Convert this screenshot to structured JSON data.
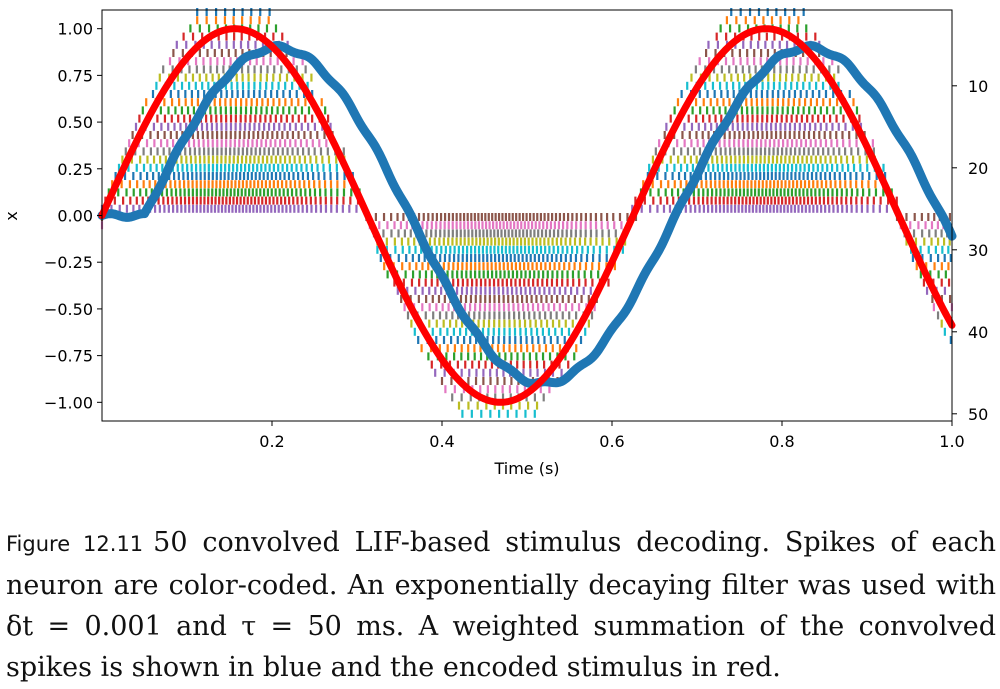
{
  "chart_data": {
    "type": "line",
    "xlabel": "Time (s)",
    "ylabel": "x",
    "xlim": [
      0,
      1.0
    ],
    "ylim": [
      -1.1,
      1.1
    ],
    "x_ticks": [
      "0.2",
      "0.4",
      "0.6",
      "0.8",
      "1.0"
    ],
    "y_ticks": [
      "1.00",
      "0.75",
      "0.50",
      "0.25",
      "0.00",
      "−0.25",
      "−0.50",
      "−0.75",
      "−1.00"
    ],
    "right_ticks": [
      "10",
      "20",
      "30",
      "40",
      "50"
    ],
    "neuron_count": 50,
    "series": [],
    "stimulus": {
      "color": "#ff0000",
      "amplitude": 1.0,
      "frequency_hz": 1.6
    },
    "decoded": {
      "color": "#1f77b4",
      "amplitude": 0.9,
      "frequency_hz": 1.6,
      "delay_s": 0.05
    },
    "raster_colors": [
      "#1f77b4",
      "#ff7f0e",
      "#2ca02c",
      "#d62728",
      "#9467bd",
      "#8c564b",
      "#e377c2",
      "#7f7f7f",
      "#bcbd22",
      "#17becf"
    ]
  },
  "caption": {
    "label": "Figure 12.11",
    "text": "50 convolved LIF-based stimulus decoding. Spikes of each neuron are color-coded. An exponentially decaying filter was used with δt = 0.001 and τ = 50 ms. A weighted summation of the convolved spikes is shown in blue and the encoded stimulus in red."
  }
}
